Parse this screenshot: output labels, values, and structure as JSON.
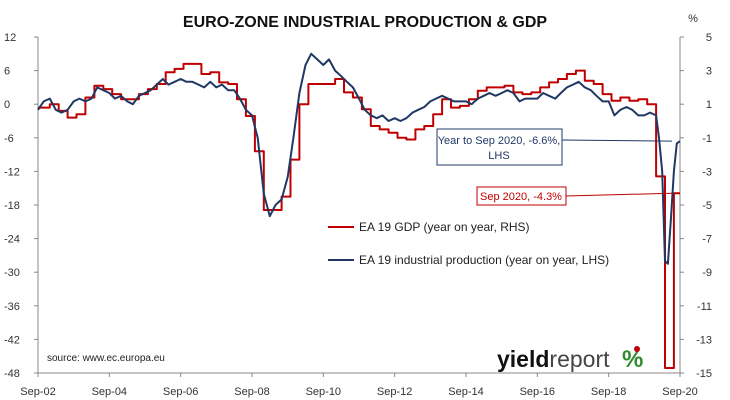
{
  "chart_data": {
    "type": "line",
    "title": "EURO-ZONE INDUSTRIAL PRODUCTION & GDP",
    "right_axis_unit": "%",
    "x_tick_labels": [
      "Sep-02",
      "Sep-04",
      "Sep-06",
      "Sep-08",
      "Sep-10",
      "Sep-12",
      "Sep-14",
      "Sep-16",
      "Sep-18",
      "Sep-20"
    ],
    "x_range": [
      2002.67,
      2020.67
    ],
    "y_left": {
      "min": -48,
      "max": 12,
      "ticks": [
        12,
        6,
        0,
        -6,
        -12,
        -18,
        -24,
        -30,
        -36,
        -42,
        -48
      ]
    },
    "y_right": {
      "min": -15,
      "max": 5,
      "ticks": [
        5,
        3,
        1,
        -1,
        -3,
        -5,
        -7,
        -9,
        -11,
        -13,
        -15
      ]
    },
    "grid": false,
    "legend_position": "center-right",
    "series": [
      {
        "name": "EA 19 GDP (year on year, RHS)",
        "color": "#c00000",
        "axis": "right",
        "style": "step",
        "points": [
          [
            2002.67,
            0.8
          ],
          [
            2003.0,
            1.0
          ],
          [
            2003.25,
            0.6
          ],
          [
            2003.5,
            0.2
          ],
          [
            2003.75,
            0.4
          ],
          [
            2004.0,
            1.4
          ],
          [
            2004.25,
            2.1
          ],
          [
            2004.5,
            1.9
          ],
          [
            2004.75,
            1.6
          ],
          [
            2005.0,
            1.3
          ],
          [
            2005.25,
            1.3
          ],
          [
            2005.5,
            1.6
          ],
          [
            2005.75,
            1.9
          ],
          [
            2006.0,
            2.2
          ],
          [
            2006.25,
            2.9
          ],
          [
            2006.5,
            3.1
          ],
          [
            2006.75,
            3.4
          ],
          [
            2007.0,
            3.4
          ],
          [
            2007.25,
            2.8
          ],
          [
            2007.5,
            2.9
          ],
          [
            2007.75,
            2.3
          ],
          [
            2008.0,
            2.2
          ],
          [
            2008.25,
            1.3
          ],
          [
            2008.5,
            0.3
          ],
          [
            2008.75,
            -1.8
          ],
          [
            2009.0,
            -5.3
          ],
          [
            2009.25,
            -5.3
          ],
          [
            2009.5,
            -4.5
          ],
          [
            2009.75,
            -2.3
          ],
          [
            2010.0,
            1.0
          ],
          [
            2010.25,
            2.2
          ],
          [
            2010.5,
            2.2
          ],
          [
            2010.75,
            2.2
          ],
          [
            2011.0,
            2.5
          ],
          [
            2011.25,
            1.7
          ],
          [
            2011.5,
            1.4
          ],
          [
            2011.75,
            0.7
          ],
          [
            2012.0,
            -0.3
          ],
          [
            2012.25,
            -0.5
          ],
          [
            2012.5,
            -0.7
          ],
          [
            2012.75,
            -1.0
          ],
          [
            2013.0,
            -1.1
          ],
          [
            2013.25,
            -0.5
          ],
          [
            2013.5,
            -0.3
          ],
          [
            2013.75,
            0.4
          ],
          [
            2014.0,
            1.3
          ],
          [
            2014.25,
            0.8
          ],
          [
            2014.5,
            0.9
          ],
          [
            2014.75,
            1.3
          ],
          [
            2015.0,
            1.8
          ],
          [
            2015.25,
            2.0
          ],
          [
            2015.5,
            2.0
          ],
          [
            2015.75,
            2.1
          ],
          [
            2016.0,
            1.7
          ],
          [
            2016.25,
            1.6
          ],
          [
            2016.5,
            1.7
          ],
          [
            2016.75,
            2.0
          ],
          [
            2017.0,
            2.3
          ],
          [
            2017.25,
            2.5
          ],
          [
            2017.5,
            2.8
          ],
          [
            2017.75,
            3.0
          ],
          [
            2018.0,
            2.4
          ],
          [
            2018.25,
            2.2
          ],
          [
            2018.5,
            1.6
          ],
          [
            2018.75,
            1.2
          ],
          [
            2019.0,
            1.4
          ],
          [
            2019.25,
            1.2
          ],
          [
            2019.5,
            1.3
          ],
          [
            2019.75,
            1.0
          ],
          [
            2020.0,
            -3.3
          ],
          [
            2020.25,
            -14.7
          ],
          [
            2020.5,
            -4.3
          ],
          [
            2020.67,
            -4.3
          ]
        ]
      },
      {
        "name": "EA 19 industrial production (year on year, LHS)",
        "color": "#1f3864",
        "axis": "left",
        "style": "line",
        "points": [
          [
            2002.67,
            -1
          ],
          [
            2002.83,
            0.5
          ],
          [
            2003.0,
            1
          ],
          [
            2003.17,
            -1
          ],
          [
            2003.33,
            -1.5
          ],
          [
            2003.5,
            -1
          ],
          [
            2003.67,
            0.5
          ],
          [
            2003.83,
            1
          ],
          [
            2004.0,
            0.5
          ],
          [
            2004.17,
            1
          ],
          [
            2004.33,
            3
          ],
          [
            2004.5,
            2.5
          ],
          [
            2004.67,
            2
          ],
          [
            2004.83,
            1
          ],
          [
            2005.0,
            1.5
          ],
          [
            2005.17,
            0.5
          ],
          [
            2005.33,
            0
          ],
          [
            2005.5,
            1.5
          ],
          [
            2005.67,
            2
          ],
          [
            2005.83,
            2.5
          ],
          [
            2006.0,
            3.5
          ],
          [
            2006.17,
            4.5
          ],
          [
            2006.33,
            3.5
          ],
          [
            2006.5,
            4
          ],
          [
            2006.67,
            4.5
          ],
          [
            2006.83,
            4
          ],
          [
            2007.0,
            4
          ],
          [
            2007.17,
            3.5
          ],
          [
            2007.33,
            3
          ],
          [
            2007.5,
            4
          ],
          [
            2007.67,
            3
          ],
          [
            2007.83,
            3.5
          ],
          [
            2008.0,
            2.5
          ],
          [
            2008.17,
            2.5
          ],
          [
            2008.33,
            1
          ],
          [
            2008.5,
            -1
          ],
          [
            2008.67,
            -2
          ],
          [
            2008.83,
            -6
          ],
          [
            2009.0,
            -16
          ],
          [
            2009.17,
            -20
          ],
          [
            2009.33,
            -18
          ],
          [
            2009.5,
            -17
          ],
          [
            2009.67,
            -13
          ],
          [
            2009.83,
            -6
          ],
          [
            2010.0,
            2
          ],
          [
            2010.17,
            7
          ],
          [
            2010.33,
            9
          ],
          [
            2010.5,
            8
          ],
          [
            2010.67,
            7
          ],
          [
            2010.83,
            8
          ],
          [
            2011.0,
            6
          ],
          [
            2011.17,
            5
          ],
          [
            2011.33,
            4
          ],
          [
            2011.5,
            3
          ],
          [
            2011.67,
            1
          ],
          [
            2011.83,
            -1
          ],
          [
            2012.0,
            -2
          ],
          [
            2012.17,
            -2.5
          ],
          [
            2012.33,
            -2
          ],
          [
            2012.5,
            -3
          ],
          [
            2012.67,
            -2.5
          ],
          [
            2012.83,
            -3
          ],
          [
            2013.0,
            -2.5
          ],
          [
            2013.17,
            -1.5
          ],
          [
            2013.33,
            -1
          ],
          [
            2013.5,
            -0.5
          ],
          [
            2013.67,
            0.5
          ],
          [
            2013.83,
            1
          ],
          [
            2014.0,
            1.5
          ],
          [
            2014.17,
            1
          ],
          [
            2014.33,
            0.5
          ],
          [
            2014.5,
            0.5
          ],
          [
            2014.67,
            0.5
          ],
          [
            2014.83,
            0
          ],
          [
            2015.0,
            1
          ],
          [
            2015.17,
            1.5
          ],
          [
            2015.33,
            2
          ],
          [
            2015.5,
            1.5
          ],
          [
            2015.67,
            2
          ],
          [
            2015.83,
            2.5
          ],
          [
            2016.0,
            2
          ],
          [
            2016.17,
            0.5
          ],
          [
            2016.33,
            1
          ],
          [
            2016.5,
            1
          ],
          [
            2016.67,
            1
          ],
          [
            2016.83,
            2
          ],
          [
            2017.0,
            1.5
          ],
          [
            2017.17,
            1
          ],
          [
            2017.33,
            2
          ],
          [
            2017.5,
            3
          ],
          [
            2017.67,
            3.5
          ],
          [
            2017.83,
            4
          ],
          [
            2018.0,
            3
          ],
          [
            2018.17,
            2.5
          ],
          [
            2018.33,
            1.5
          ],
          [
            2018.5,
            0.5
          ],
          [
            2018.67,
            0.5
          ],
          [
            2018.83,
            -2
          ],
          [
            2019.0,
            -1
          ],
          [
            2019.17,
            -0.5
          ],
          [
            2019.33,
            -1
          ],
          [
            2019.5,
            -2
          ],
          [
            2019.67,
            -2
          ],
          [
            2019.83,
            -1.5
          ],
          [
            2020.0,
            -2
          ],
          [
            2020.08,
            -6
          ],
          [
            2020.17,
            -12
          ],
          [
            2020.25,
            -28
          ],
          [
            2020.33,
            -28.5
          ],
          [
            2020.42,
            -20
          ],
          [
            2020.5,
            -12
          ],
          [
            2020.58,
            -7
          ],
          [
            2020.67,
            -6.6
          ]
        ]
      }
    ],
    "annotations": {
      "ip_note_lines": [
        "Year to Sep 2020, -6.6%,",
        "LHS"
      ],
      "gdp_note": "Sep 2020, -4.3%"
    },
    "source": "source: www.ec.europa.eu",
    "logo": {
      "word1": "yield",
      "word2": "report",
      "symbol": "%"
    }
  }
}
